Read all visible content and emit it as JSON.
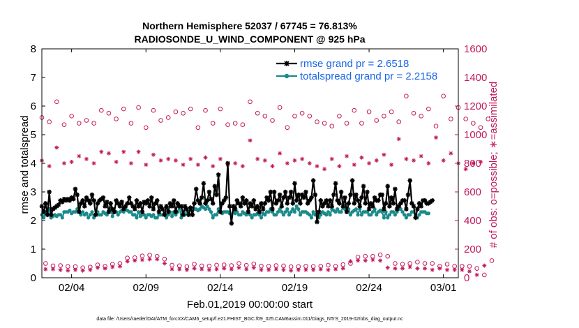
{
  "chart_data": {
    "type": "line",
    "title": "Northern Hemisphere 52037 / 67745 = 76.813%",
    "subtitle": "RADIOSONDE_U_WIND_COMPONENT @ 925 hPa",
    "xlabel": "Feb.01,2019 00:00:00 start",
    "ylabel": "rmse and totalspread",
    "ylabel_right": "# of obs: o=possible; ∗=assimilated",
    "footnote": "data file: /Users/raeder/DAI/ATM_forcXX/CAM6_setup/f.e21.FHIST_BGC.f09_025.CAM6assim.011/Diags_NTrS_2019-02/obs_diag_output.nc",
    "xlim": [
      1.0,
      29.0
    ],
    "ylim": [
      0,
      8
    ],
    "ylim_right": [
      0,
      1600
    ],
    "x_ticks": [
      3.0,
      8.0,
      13.0,
      18.0,
      23.0,
      28.0
    ],
    "x_tick_labels": [
      "02/04",
      "02/09",
      "02/14",
      "02/19",
      "02/24",
      "03/01"
    ],
    "y_ticks": [
      0,
      1,
      2,
      3,
      4,
      5,
      6,
      7,
      8
    ],
    "y_tick_labels": [
      "0",
      "1",
      "2",
      "3",
      "4",
      "5",
      "6",
      "7",
      "8"
    ],
    "y2_ticks": [
      0,
      200,
      400,
      600,
      800,
      1000,
      1200,
      1400,
      1600
    ],
    "y2_tick_labels": [
      "0",
      "200",
      "400",
      "600",
      "800",
      "1000",
      "1200",
      "1400",
      "1600"
    ],
    "legend_position": "top-right",
    "colors": {
      "rmse": "#000000",
      "totalspread": "#1b8a8a",
      "obs": "#c2185b",
      "legend_text": "#1a66e6"
    },
    "series": [
      {
        "name": "rmse grand pr = 2.6518",
        "axis": "left",
        "step": 0.125,
        "x_start": 1.0,
        "values": [
          2.5,
          2.3,
          2.6,
          2.2,
          3.0,
          2.2,
          2.4,
          2.45,
          2.5,
          2.55,
          2.7,
          2.65,
          2.75,
          2.7,
          2.75,
          2.7,
          2.8,
          2.75,
          3.1,
          2.9,
          2.3,
          2.6,
          2.7,
          2.5,
          2.8,
          2.7,
          2.6,
          2.9,
          2.7,
          2.2,
          2.6,
          2.7,
          2.75,
          2.8,
          2.5,
          2.65,
          2.3,
          2.6,
          2.4,
          2.3,
          2.7,
          2.6,
          2.5,
          2.65,
          2.4,
          2.5,
          2.6,
          2.8,
          2.6,
          2.5,
          2.4,
          2.7,
          2.5,
          2.6,
          2.3,
          2.65,
          2.6,
          2.7,
          2.5,
          2.8,
          2.4,
          2.6,
          2.7,
          2.3,
          2.5,
          2.4,
          2.2,
          2.5,
          2.3,
          2.6,
          2.5,
          2.7,
          2.3,
          2.6,
          2.5,
          2.5,
          2.2,
          2.5,
          2.4,
          2.2,
          2.45,
          2.2,
          2.6,
          3.1,
          2.7,
          2.6,
          2.8,
          3.3,
          2.6,
          2.7,
          3.0,
          2.75,
          2.6,
          3.2,
          2.9,
          3.6,
          2.3,
          2.6,
          2.7,
          2.8,
          4.0,
          2.5,
          1.9,
          2.5,
          2.4,
          2.7,
          2.6,
          2.5,
          2.8,
          2.6,
          2.7,
          2.3,
          2.6,
          2.5,
          2.7,
          2.4,
          2.5,
          2.3,
          2.6,
          2.4,
          2.6,
          2.8,
          2.7,
          3.0,
          2.4,
          3.0,
          2.6,
          2.7,
          2.9,
          2.5,
          2.8,
          3.0,
          2.6,
          2.8,
          3.0,
          2.6,
          3.3,
          2.7,
          2.9,
          2.6,
          2.9,
          2.8,
          3.0,
          2.6,
          2.7,
          2.8,
          3.4,
          2.9,
          1.95,
          2.3,
          2.7,
          2.5,
          2.6,
          2.7,
          2.5,
          2.7,
          2.5,
          2.9,
          3.3,
          2.7,
          2.6,
          3.0,
          2.5,
          2.8,
          2.3,
          2.6,
          2.9,
          3.4,
          2.6,
          2.9,
          2.7,
          2.5,
          2.8,
          3.2,
          2.6,
          3.0,
          2.4,
          2.6,
          2.5,
          2.8,
          2.7,
          2.7,
          2.9,
          2.9,
          2.4,
          2.6,
          3.2,
          2.5,
          2.8,
          2.6,
          3.1,
          2.4,
          2.5,
          2.6,
          2.7,
          2.7,
          2.4,
          2.9,
          3.4,
          2.6,
          2.5,
          2.1,
          2.4,
          2.6,
          2.5,
          2.7,
          2.7,
          2.6,
          2.6,
          2.65,
          2.7
        ]
      },
      {
        "name": "totalspread grand pr = 2.2158",
        "axis": "left",
        "step": 0.125,
        "x_start": 1.0,
        "values": [
          2.2,
          2.1,
          2.3,
          2.2,
          2.4,
          2.1,
          2.15,
          2.2,
          2.15,
          2.2,
          2.2,
          2.1,
          2.3,
          2.3,
          2.3,
          2.35,
          2.25,
          2.3,
          2.3,
          2.4,
          2.5,
          2.2,
          2.3,
          2.2,
          2.25,
          2.1,
          2.2,
          2.3,
          2.1,
          2.2,
          2.3,
          2.2,
          2.2,
          2.3,
          2.25,
          2.2,
          2.3,
          2.4,
          2.15,
          2.3,
          2.3,
          2.2,
          2.3,
          2.35,
          2.3,
          2.4,
          2.35,
          2.3,
          2.3,
          2.2,
          2.2,
          2.1,
          2.3,
          2.15,
          2.2,
          2.2,
          2.1,
          2.2,
          2.2,
          2.15,
          2.2,
          2.1,
          2.1,
          2.2,
          2.2,
          2.2,
          2.25,
          2.1,
          2.2,
          2.3,
          2.15,
          2.3,
          2.2,
          2.3,
          2.5,
          2.1,
          2.3,
          2.2,
          2.3,
          2.3,
          2.4,
          2.35,
          2.4,
          2.4,
          2.35,
          2.4,
          2.5,
          2.45,
          2.4,
          2.5,
          2.4,
          2.3,
          2.1,
          2.2,
          2.2,
          2.4,
          2.3,
          2.25,
          2.3,
          2.3,
          2.3,
          2.25,
          2.2,
          2.3,
          2.25,
          2.3,
          2.2,
          2.2,
          2.3,
          2.25,
          2.2,
          2.3,
          2.2,
          2.1,
          2.2,
          2.2,
          2.25,
          2.2,
          2.1,
          2.25,
          2.2,
          2.3,
          2.3,
          2.4,
          2.3,
          2.2,
          2.2,
          2.3,
          2.4,
          2.3,
          2.2,
          2.3,
          2.4,
          2.2,
          2.3,
          2.4,
          2.3,
          2.5,
          2.4,
          2.2,
          2.3,
          2.3,
          2.3,
          2.25,
          2.2,
          2.1,
          2.3,
          2.2,
          2.2,
          2.1,
          2.2,
          2.3,
          2.25,
          2.2,
          2.3,
          2.2,
          2.4,
          2.35,
          2.3,
          2.4,
          2.3,
          2.3,
          2.5,
          2.4,
          2.3,
          2.4,
          2.2,
          2.3,
          2.35,
          2.4,
          2.2,
          2.4,
          2.2,
          2.3,
          2.3,
          2.3,
          2.2,
          2.2,
          2.3,
          2.4,
          2.2,
          2.3,
          2.35,
          2.3,
          2.1,
          2.3,
          2.1,
          2.2,
          2.3,
          2.3,
          2.2,
          2.3,
          2.4,
          2.4,
          2.3,
          2.2,
          2.1,
          2.2,
          2.2,
          2.3,
          2.3,
          2.2,
          2.1,
          2.2,
          2.3,
          2.3,
          2.3,
          2.25,
          2.25
        ]
      },
      {
        "name": "obs possible",
        "axis": "right",
        "marker": "o",
        "step": 0.25,
        "x_start": 1.0,
        "values": [
          1120,
          100,
          1090,
          83,
          1230,
          85,
          1070,
          79,
          1130,
          78,
          1080,
          70,
          1100,
          75,
          1080,
          90,
          1170,
          80,
          1150,
          95,
          1110,
          100,
          1180,
          138,
          1080,
          140,
          1190,
          153,
          1050,
          158,
          1170,
          150,
          1100,
          130,
          1120,
          88,
          1160,
          84,
          1150,
          78,
          1180,
          95,
          1050,
          83,
          1170,
          82,
          1080,
          88,
          1180,
          90,
          1070,
          85,
          1080,
          100,
          1070,
          87,
          1230,
          97,
          1150,
          82,
          1130,
          80,
          1100,
          85,
          1190,
          83,
          1050,
          77,
          1130,
          78,
          1150,
          80,
          1130,
          79,
          1090,
          80,
          1080,
          88,
          1060,
          80,
          1130,
          92,
          1080,
          100,
          1170,
          145,
          1080,
          150,
          1160,
          150,
          1100,
          160,
          1130,
          150,
          1160,
          100,
          1090,
          95,
          1270,
          100,
          1150,
          110,
          1130,
          100,
          1180,
          100,
          1060,
          80,
          1270,
          95,
          1110,
          80,
          1190,
          80,
          1110,
          80,
          1080,
          65,
          1050,
          20,
          1110,
          120
        ]
      },
      {
        "name": "obs assimilated",
        "axis": "right",
        "marker": "*",
        "step": 0.25,
        "x_start": 1.0,
        "values": [
          820,
          60,
          780,
          60,
          910,
          55,
          800,
          50,
          810,
          55,
          850,
          50,
          830,
          55,
          800,
          70,
          880,
          65,
          870,
          75,
          810,
          80,
          880,
          115,
          800,
          120,
          880,
          125,
          790,
          130,
          860,
          130,
          820,
          100,
          830,
          60,
          820,
          60,
          790,
          55,
          830,
          65,
          790,
          60,
          840,
          55,
          780,
          60,
          830,
          65,
          790,
          60,
          800,
          70,
          780,
          60,
          960,
          70,
          830,
          55,
          820,
          55,
          780,
          60,
          870,
          55,
          800,
          50,
          820,
          55,
          830,
          55,
          800,
          55,
          780,
          60,
          760,
          55,
          830,
          60,
          780,
          65,
          850,
          115,
          790,
          120,
          840,
          120,
          800,
          125,
          820,
          120,
          860,
          70,
          790,
          65,
          970,
          65,
          830,
          75,
          820,
          65,
          850,
          65,
          800,
          55,
          980,
          65,
          820,
          55,
          870,
          55,
          800,
          55,
          760,
          45,
          800,
          20,
          810,
          85
        ]
      }
    ]
  }
}
